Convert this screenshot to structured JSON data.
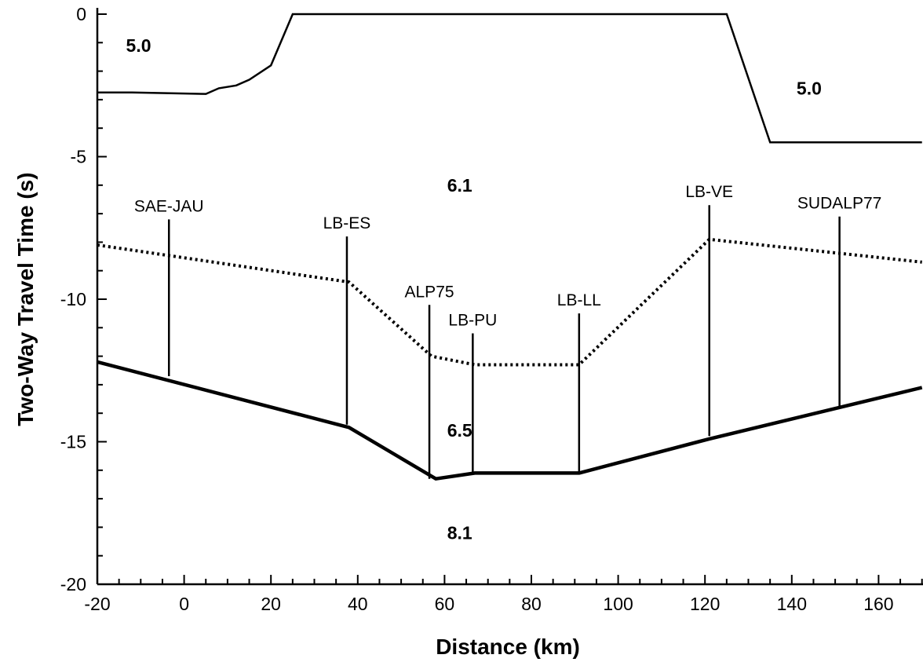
{
  "chart_data": {
    "type": "line",
    "xlabel": "Distance (km)",
    "ylabel": "Two-Way Travel Time (s)",
    "xlim": [
      -20,
      170
    ],
    "ylim": [
      -20,
      0
    ],
    "xticks": [
      -20,
      0,
      20,
      40,
      60,
      80,
      100,
      120,
      140,
      160
    ],
    "yticks": [
      0,
      -5,
      -10,
      -15,
      -20
    ],
    "series": [
      {
        "style": "solid-thin",
        "x": [
          -20,
          -12,
          5,
          8,
          12,
          15,
          20,
          25,
          125,
          135,
          170
        ],
        "y": [
          -2.75,
          -2.75,
          -2.8,
          -2.6,
          -2.5,
          -2.3,
          -1.8,
          0,
          0,
          -4.5,
          -4.5
        ]
      },
      {
        "style": "dotted",
        "x": [
          -20,
          38,
          57,
          67,
          91,
          121,
          170
        ],
        "y": [
          -8.1,
          -9.4,
          -12.0,
          -12.3,
          -12.3,
          -7.9,
          -8.7
        ]
      },
      {
        "style": "solid-thick",
        "x": [
          -20,
          38,
          58,
          67,
          91,
          121,
          170
        ],
        "y": [
          -12.2,
          -14.5,
          -16.3,
          -16.1,
          -16.1,
          -14.9,
          -13.1
        ]
      }
    ],
    "velocity_labels": [
      {
        "text": "5.0",
        "x": -10.5,
        "y": -1.1
      },
      {
        "text": "5.0",
        "x": 144,
        "y": -2.6
      },
      {
        "text": "6.1",
        "x": 63.5,
        "y": -6.0
      },
      {
        "text": "6.5",
        "x": 63.5,
        "y": -14.6
      },
      {
        "text": "8.1",
        "x": 63.5,
        "y": -18.2
      }
    ],
    "profiles": [
      {
        "name": "SAE-JAU",
        "x": -3.5,
        "top": -7.2,
        "bottom": -12.7
      },
      {
        "name": "LB-ES",
        "x": 37.5,
        "top": -7.8,
        "bottom": -14.4
      },
      {
        "name": "ALP75",
        "x": 56.5,
        "top": -10.2,
        "bottom": -16.3
      },
      {
        "name": "LB-PU",
        "x": 66.5,
        "top": -11.2,
        "bottom": -16.1
      },
      {
        "name": "LB-LL",
        "x": 91,
        "top": -10.5,
        "bottom": -16.1
      },
      {
        "name": "LB-VE",
        "x": 121,
        "top": -6.7,
        "bottom": -14.8
      },
      {
        "name": "SUDALP77",
        "x": 151,
        "top": -7.1,
        "bottom": -13.8
      }
    ]
  }
}
